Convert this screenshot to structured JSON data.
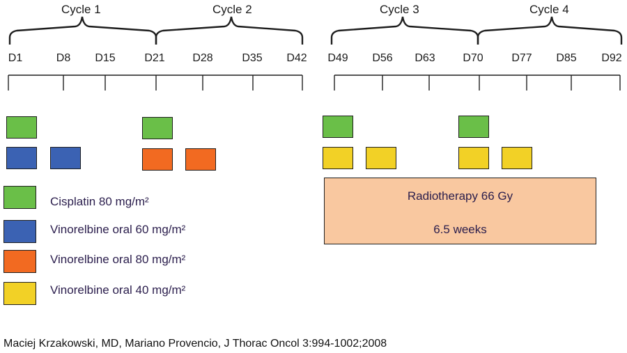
{
  "colors": {
    "cisplatin": "#6abf48",
    "vinorelbine_60": "#3b62b3",
    "vinorelbine_80": "#f26a21",
    "vinorelbine_40": "#f2d126",
    "radiotherapy": "#f9c8a0",
    "line": "#1e1e1e"
  },
  "cycles": [
    "Cycle 1",
    "Cycle 2",
    "Cycle 3",
    "Cycle 4"
  ],
  "days_left": [
    "D1",
    "D8",
    "D15",
    "D21",
    "D28",
    "D35",
    "D42"
  ],
  "days_right": [
    "D49",
    "D56",
    "D63",
    "D70",
    "D77",
    "D85",
    "D92"
  ],
  "legend": [
    {
      "label": "Cisplatin 80 mg/m²",
      "color_key": "cisplatin"
    },
    {
      "label": "Vinorelbine oral 60 mg/m²",
      "color_key": "vinorelbine_60"
    },
    {
      "label": "Vinorelbine oral 80 mg/m²",
      "color_key": "vinorelbine_80"
    },
    {
      "label": "Vinorelbine oral 40 mg/m²",
      "color_key": "vinorelbine_40"
    }
  ],
  "schedule": {
    "cisplatin_days": [
      "D1",
      "D21",
      "D49",
      "D70"
    ],
    "vinorelbine_60_days": [
      "D1",
      "D8"
    ],
    "vinorelbine_80_days": [
      "D21",
      "D28"
    ],
    "vinorelbine_40_days": [
      "D49",
      "D56",
      "D70",
      "D77"
    ]
  },
  "radiotherapy": {
    "line1": "Radiotherapy 66 Gy",
    "line2": "6.5 weeks"
  },
  "citation": "Maciej Krzakowski, MD, Mariano Provencio, J Thorac Oncol 3:994-1002;2008"
}
